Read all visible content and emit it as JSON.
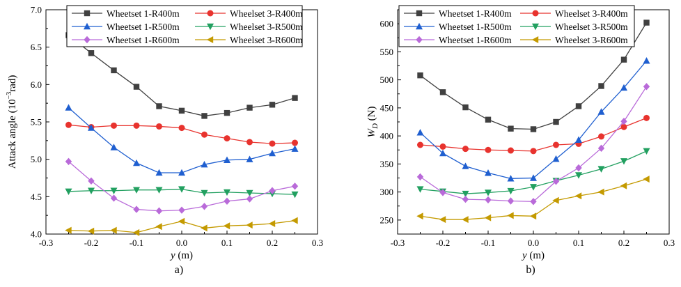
{
  "figure": {
    "panels": [
      {
        "label": "a)"
      },
      {
        "label": "b)"
      }
    ]
  },
  "chart_data": [
    {
      "type": "line",
      "panel_label": "a)",
      "title": "",
      "xlabel_italic": "y",
      "xlabel_rest": " (m)",
      "ylabel_prefix": "Attack angle (10",
      "ylabel_sup": "−3",
      "ylabel_suffix": "rad)",
      "xlim": [
        -0.3,
        0.3
      ],
      "ylim": [
        4.0,
        7.0
      ],
      "xticks": [
        -0.3,
        -0.2,
        -0.1,
        0.0,
        0.1,
        0.2,
        0.3
      ],
      "xtick_labels": [
        "-0.3",
        "-0.2",
        "-0.1",
        "0.0",
        "0.1",
        "0.2",
        "0.3"
      ],
      "yticks": [
        4.0,
        4.5,
        5.0,
        5.5,
        6.0,
        6.5,
        7.0
      ],
      "ytick_labels": [
        "4.0",
        "4.5",
        "5.0",
        "5.5",
        "6.0",
        "6.5",
        "7.0"
      ],
      "grid": false,
      "legend_position": "top",
      "x": [
        -0.25,
        -0.2,
        -0.15,
        -0.1,
        -0.05,
        0.0,
        0.05,
        0.1,
        0.15,
        0.2,
        0.25
      ],
      "series": [
        {
          "name": "Wheetset 1-R400m",
          "color": "#404040",
          "marker": "square",
          "values": [
            6.66,
            6.42,
            6.19,
            5.97,
            5.71,
            5.65,
            5.58,
            5.62,
            5.69,
            5.73,
            5.82
          ]
        },
        {
          "name": "Wheelset 3-R400m",
          "color": "#e8332e",
          "marker": "circle",
          "values": [
            5.46,
            5.43,
            5.45,
            5.45,
            5.44,
            5.42,
            5.33,
            5.28,
            5.23,
            5.21,
            5.22
          ]
        },
        {
          "name": "Wheetset 1-R500m",
          "color": "#1f5fd0",
          "marker": "triangle-up",
          "values": [
            5.69,
            5.42,
            5.16,
            4.95,
            4.82,
            4.82,
            4.93,
            4.99,
            5.0,
            5.08,
            5.14
          ]
        },
        {
          "name": "Wheelset 3-R500m",
          "color": "#22a060",
          "marker": "triangle-down",
          "values": [
            4.57,
            4.58,
            4.58,
            4.59,
            4.59,
            4.6,
            4.55,
            4.56,
            4.55,
            4.54,
            4.53
          ]
        },
        {
          "name": "Wheetset 1-R600m",
          "color": "#b96ad9",
          "marker": "diamond",
          "values": [
            4.97,
            4.71,
            4.48,
            4.33,
            4.31,
            4.32,
            4.37,
            4.44,
            4.47,
            4.58,
            4.64
          ]
        },
        {
          "name": "Wheelset 3-R600m",
          "color": "#c49a00",
          "marker": "triangle-left",
          "values": [
            4.05,
            4.04,
            4.05,
            4.02,
            4.1,
            4.17,
            4.08,
            4.11,
            4.12,
            4.14,
            4.18
          ]
        }
      ]
    },
    {
      "type": "line",
      "panel_label": "b)",
      "title": "",
      "xlabel_italic": "y",
      "xlabel_rest": " (m)",
      "ylabel_main": "W",
      "ylabel_sub": "D",
      "ylabel_suffix": " (N)",
      "xlim": [
        -0.3,
        0.3
      ],
      "ylim": [
        225,
        625
      ],
      "xticks": [
        -0.3,
        -0.2,
        -0.1,
        0.0,
        0.1,
        0.2,
        0.3
      ],
      "xtick_labels": [
        "-0.3",
        "-0.2",
        "-0.1",
        "0.0",
        "0.1",
        "0.2",
        "0.3"
      ],
      "yticks": [
        250,
        300,
        350,
        400,
        450,
        500,
        550,
        600
      ],
      "ytick_labels": [
        "250",
        "300",
        "350",
        "400",
        "450",
        "500",
        "550",
        "600"
      ],
      "grid": false,
      "legend_position": "top",
      "x": [
        -0.25,
        -0.2,
        -0.15,
        -0.1,
        -0.05,
        0.0,
        0.05,
        0.1,
        0.15,
        0.2,
        0.25
      ],
      "series": [
        {
          "name": "Wheetset 1-R400m",
          "color": "#404040",
          "marker": "square",
          "values": [
            508,
            478,
            451,
            429,
            413,
            412,
            425,
            453,
            489,
            536,
            602
          ]
        },
        {
          "name": "Wheelset 3-R400m",
          "color": "#e8332e",
          "marker": "circle",
          "values": [
            384,
            381,
            377,
            375,
            374,
            373,
            384,
            386,
            399,
            416,
            432
          ]
        },
        {
          "name": "Wheetset 1-R500m",
          "color": "#1f5fd0",
          "marker": "triangle-up",
          "values": [
            406,
            369,
            346,
            334,
            324,
            325,
            359,
            393,
            443,
            486,
            534
          ]
        },
        {
          "name": "Wheelset 3-R500m",
          "color": "#22a060",
          "marker": "triangle-down",
          "values": [
            305,
            301,
            297,
            299,
            302,
            309,
            320,
            330,
            341,
            355,
            373
          ]
        },
        {
          "name": "Wheetset 1-R600m",
          "color": "#b96ad9",
          "marker": "diamond",
          "values": [
            327,
            299,
            287,
            286,
            284,
            283,
            319,
            343,
            378,
            426,
            488
          ]
        },
        {
          "name": "Wheelset 3-R600m",
          "color": "#c49a00",
          "marker": "triangle-left",
          "values": [
            257,
            251,
            251,
            254,
            258,
            257,
            285,
            293,
            300,
            311,
            323
          ]
        }
      ]
    }
  ]
}
